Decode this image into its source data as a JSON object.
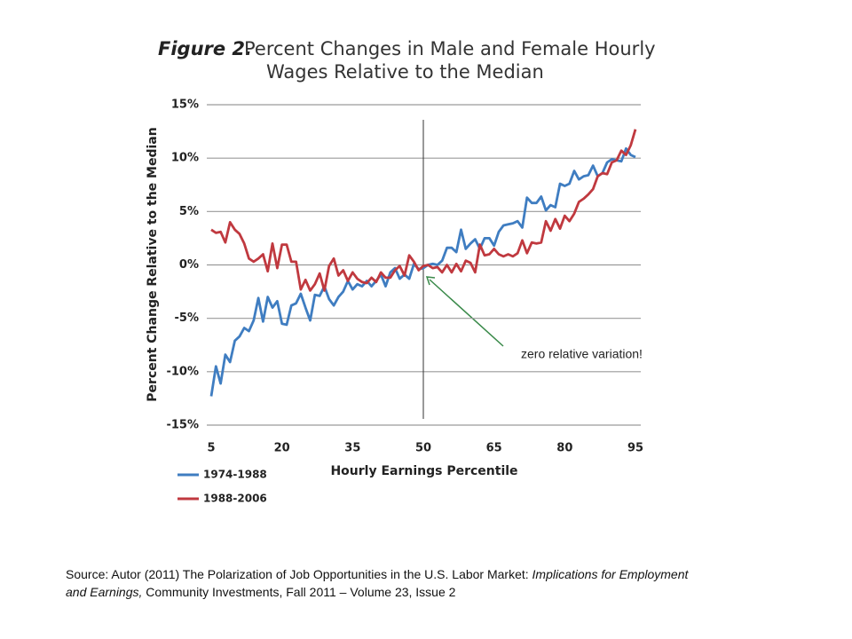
{
  "chart_data": {
    "type": "line",
    "title_label": "Figure 2.",
    "title": [
      "Percent Changes in Male and Female Hourly",
      "Wages Relative to the Median"
    ],
    "x_label": "Hourly Earnings Percentile",
    "y_label": "Percent Change Relative to the Median",
    "annotation": "zero relative variation!",
    "vline_x": 50,
    "x": [
      5,
      6,
      7,
      8,
      9,
      10,
      11,
      12,
      13,
      14,
      15,
      16,
      17,
      18,
      19,
      20,
      21,
      22,
      23,
      24,
      25,
      26,
      27,
      28,
      29,
      30,
      31,
      32,
      33,
      34,
      35,
      36,
      37,
      38,
      39,
      40,
      41,
      42,
      43,
      44,
      45,
      46,
      47,
      48,
      49,
      50,
      51,
      52,
      53,
      54,
      55,
      56,
      57,
      58,
      59,
      60,
      61,
      62,
      63,
      64,
      65,
      66,
      67,
      68,
      69,
      70,
      71,
      72,
      73,
      74,
      75,
      76,
      77,
      78,
      79,
      80,
      81,
      82,
      83,
      84,
      85,
      86,
      87,
      88,
      89,
      90,
      91,
      92,
      93,
      94,
      95
    ],
    "series": [
      {
        "name": "1974-1988",
        "color": "#3f7dc1",
        "values": [
          -12.3,
          -9.5,
          -11.1,
          -8.4,
          -9.1,
          -7.1,
          -6.7,
          -5.9,
          -6.2,
          -5.2,
          -3.1,
          -5.3,
          -3.0,
          -4.0,
          -3.4,
          -5.5,
          -5.6,
          -3.8,
          -3.6,
          -2.7,
          -4.0,
          -5.2,
          -2.8,
          -2.9,
          -2.0,
          -3.2,
          -3.8,
          -3.0,
          -2.5,
          -1.5,
          -2.3,
          -1.8,
          -2.0,
          -1.5,
          -2.0,
          -1.5,
          -0.9,
          -2.0,
          -0.7,
          -0.3,
          -1.3,
          -0.9,
          -1.3,
          0.1,
          -0.4,
          -0.3,
          0.0,
          0.1,
          0.0,
          0.4,
          1.6,
          1.6,
          1.2,
          3.3,
          1.5,
          2.0,
          2.4,
          1.5,
          2.5,
          2.5,
          1.8,
          3.1,
          3.7,
          3.8,
          3.9,
          4.1,
          3.5,
          6.3,
          5.8,
          5.8,
          6.4,
          5.1,
          5.6,
          5.4,
          7.6,
          7.4,
          7.6,
          8.8,
          8.0,
          8.3,
          8.4,
          9.3,
          8.3,
          8.6,
          9.6,
          9.9,
          9.8,
          9.7,
          10.9,
          10.3,
          10.1
        ]
      },
      {
        "name": "1988-2006",
        "color": "#c0393f",
        "values": [
          3.3,
          3.0,
          3.1,
          2.1,
          4.0,
          3.3,
          2.9,
          2.0,
          0.6,
          0.3,
          0.6,
          1.0,
          -0.6,
          2.0,
          -0.3,
          1.9,
          1.9,
          0.3,
          0.3,
          -2.3,
          -1.4,
          -2.4,
          -1.8,
          -0.8,
          -2.4,
          -0.1,
          0.6,
          -1.0,
          -0.5,
          -1.5,
          -0.7,
          -1.3,
          -1.6,
          -1.7,
          -1.2,
          -1.6,
          -0.7,
          -1.2,
          -1.2,
          -0.5,
          -0.1,
          -1.0,
          0.9,
          0.3,
          -0.5,
          -0.1,
          0.0,
          -0.3,
          -0.2,
          -0.7,
          0.0,
          -0.7,
          0.1,
          -0.6,
          0.4,
          0.2,
          -0.7,
          1.9,
          0.9,
          1.0,
          1.5,
          1.0,
          0.8,
          1.0,
          0.8,
          1.1,
          2.3,
          1.1,
          2.1,
          2.0,
          2.1,
          4.1,
          3.2,
          4.3,
          3.4,
          4.6,
          4.1,
          4.8,
          5.9,
          6.2,
          6.6,
          7.1,
          8.3,
          8.6,
          8.5,
          9.6,
          9.8,
          10.7,
          10.3,
          11.2,
          12.7
        ]
      }
    ],
    "xlim": [
      5,
      95
    ],
    "xticks": [
      5,
      20,
      35,
      50,
      65,
      80,
      95
    ],
    "ylim": [
      -15,
      15
    ],
    "yticks": [
      {
        "value": -15,
        "label": "-15%"
      },
      {
        "value": -10,
        "label": "-10%"
      },
      {
        "value": -5,
        "label": "-5%"
      },
      {
        "value": 0,
        "label": "0%"
      },
      {
        "value": 5,
        "label": "5%"
      },
      {
        "value": 10,
        "label": "10%"
      },
      {
        "value": 15,
        "label": "15%"
      }
    ],
    "grid": true,
    "source": {
      "before": "Source: Autor (2011) The Polarization of Job Opportunities in the U.S. Labor Market: ",
      "italic": "Implications for Employment and Earnings,",
      "after": " Community Investments, Fall 2011 – Volume 23, Issue 2"
    }
  }
}
